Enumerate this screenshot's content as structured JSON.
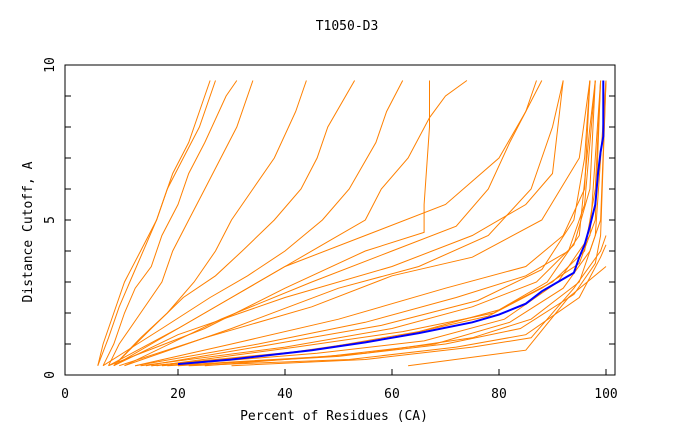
{
  "chart_data": {
    "type": "line",
    "title": "T1050-D3",
    "xlabel": "Percent of Residues (CA)",
    "ylabel": "Distance Cutoff, A",
    "xlim": [
      0,
      100
    ],
    "ylim": [
      0,
      10
    ],
    "xticks": [
      0,
      20,
      40,
      60,
      80,
      100
    ],
    "yticks": [
      0,
      5,
      10
    ],
    "grid": false,
    "colors": {
      "models": "#ff8000",
      "highlight": "#0000ff"
    },
    "series": [
      {
        "color": "#ff8000",
        "points": [
          [
            5,
            0.3
          ],
          [
            6,
            1
          ],
          [
            8,
            2
          ],
          [
            10,
            3
          ],
          [
            13,
            4
          ],
          [
            16,
            5
          ],
          [
            19,
            6.5
          ],
          [
            22,
            7.5
          ],
          [
            24,
            8.5
          ],
          [
            26,
            9.5
          ]
        ]
      },
      {
        "color": "#ff8000",
        "points": [
          [
            5,
            0.3
          ],
          [
            7,
            1.2
          ],
          [
            9,
            2.2
          ],
          [
            11,
            3
          ],
          [
            14,
            4.2
          ],
          [
            16,
            5
          ],
          [
            18,
            6
          ],
          [
            21,
            7
          ],
          [
            24,
            8
          ],
          [
            27,
            9.5
          ]
        ]
      },
      {
        "color": "#ff8000",
        "points": [
          [
            6,
            0.3
          ],
          [
            8,
            1
          ],
          [
            10,
            2
          ],
          [
            12,
            2.8
          ],
          [
            15,
            3.5
          ],
          [
            17,
            4.5
          ],
          [
            20,
            5.5
          ],
          [
            22,
            6.5
          ],
          [
            25,
            7.5
          ],
          [
            29,
            9
          ],
          [
            31,
            9.5
          ]
        ]
      },
      {
        "color": "#ff8000",
        "points": [
          [
            7,
            0.3
          ],
          [
            9,
            1
          ],
          [
            13,
            2
          ],
          [
            17,
            3
          ],
          [
            19,
            4
          ],
          [
            22,
            5
          ],
          [
            25,
            6
          ],
          [
            28,
            7
          ],
          [
            31,
            8
          ],
          [
            34,
            9.5
          ]
        ]
      },
      {
        "color": "#ff8000",
        "points": [
          [
            8,
            0.3
          ],
          [
            13,
            1.2
          ],
          [
            18,
            2
          ],
          [
            23,
            3
          ],
          [
            27,
            4
          ],
          [
            30,
            5
          ],
          [
            34,
            6
          ],
          [
            38,
            7
          ],
          [
            42,
            8.5
          ],
          [
            44,
            9.5
          ]
        ]
      },
      {
        "color": "#ff8000",
        "points": [
          [
            8,
            0.3
          ],
          [
            15,
            1.5
          ],
          [
            21,
            2.5
          ],
          [
            27,
            3.2
          ],
          [
            32,
            4
          ],
          [
            38,
            5
          ],
          [
            43,
            6
          ],
          [
            46,
            7
          ],
          [
            48,
            8
          ],
          [
            53,
            9.5
          ]
        ]
      },
      {
        "color": "#ff8000",
        "points": [
          [
            6,
            0.3
          ],
          [
            17,
            1.5
          ],
          [
            26,
            2.5
          ],
          [
            33,
            3.2
          ],
          [
            40,
            4
          ],
          [
            47,
            5
          ],
          [
            52,
            6
          ],
          [
            57,
            7.5
          ],
          [
            59,
            8.5
          ],
          [
            62,
            9.5
          ]
        ]
      },
      {
        "color": "#ff8000",
        "points": [
          [
            7,
            0.3
          ],
          [
            20,
            1.5
          ],
          [
            30,
            2.5
          ],
          [
            40,
            3.5
          ],
          [
            48,
            4.3
          ],
          [
            55,
            5
          ],
          [
            58,
            6
          ],
          [
            63,
            7
          ],
          [
            67,
            8.3
          ],
          [
            70,
            9
          ],
          [
            74,
            9.5
          ]
        ]
      },
      {
        "color": "#ff8000",
        "points": [
          [
            7,
            0.3
          ],
          [
            25,
            1.5
          ],
          [
            40,
            2.8
          ],
          [
            55,
            4
          ],
          [
            66,
            4.6
          ],
          [
            66,
            5.5
          ],
          [
            67,
            8
          ],
          [
            67,
            9.5
          ]
        ]
      },
      {
        "color": "#ff8000",
        "points": [
          [
            8,
            0.3
          ],
          [
            20,
            1.3
          ],
          [
            40,
            2.5
          ],
          [
            60,
            3.5
          ],
          [
            75,
            4.5
          ],
          [
            85,
            5.5
          ],
          [
            90,
            6.5
          ],
          [
            92,
            9.5
          ]
        ]
      },
      {
        "color": "#ff8000",
        "points": [
          [
            9,
            0.3
          ],
          [
            25,
            1.2
          ],
          [
            45,
            2.2
          ],
          [
            60,
            3.2
          ],
          [
            75,
            3.8
          ],
          [
            88,
            5
          ],
          [
            95,
            7
          ],
          [
            97,
            9.5
          ]
        ]
      },
      {
        "color": "#ff8000",
        "points": [
          [
            12,
            0.3
          ],
          [
            30,
            1
          ],
          [
            50,
            1.8
          ],
          [
            70,
            2.8
          ],
          [
            85,
            3.5
          ],
          [
            92,
            4.5
          ],
          [
            96,
            6
          ],
          [
            97,
            9.5
          ]
        ]
      },
      {
        "color": "#ff8000",
        "points": [
          [
            12,
            0.3
          ],
          [
            35,
            1
          ],
          [
            55,
            1.7
          ],
          [
            72,
            2.5
          ],
          [
            85,
            3.2
          ],
          [
            93,
            4
          ],
          [
            96,
            5.5
          ],
          [
            98,
            9.5
          ]
        ]
      },
      {
        "color": "#ff8000",
        "points": [
          [
            13,
            0.3
          ],
          [
            40,
            0.9
          ],
          [
            60,
            1.5
          ],
          [
            75,
            2.2
          ],
          [
            87,
            3
          ],
          [
            94,
            4.2
          ],
          [
            97,
            6
          ],
          [
            98,
            9.5
          ]
        ]
      },
      {
        "color": "#ff8000",
        "points": [
          [
            15,
            0.3
          ],
          [
            40,
            0.7
          ],
          [
            60,
            1.2
          ],
          [
            78,
            1.9
          ],
          [
            88,
            2.8
          ],
          [
            95,
            3.6
          ],
          [
            98,
            5
          ],
          [
            99,
            9.5
          ]
        ]
      },
      {
        "color": "#ff8000",
        "points": [
          [
            15,
            0.3
          ],
          [
            45,
            0.8
          ],
          [
            65,
            1.4
          ],
          [
            80,
            2.1
          ],
          [
            90,
            3
          ],
          [
            96,
            4
          ],
          [
            98,
            6
          ],
          [
            99,
            9.5
          ]
        ]
      },
      {
        "color": "#ff8000",
        "points": [
          [
            18,
            0.3
          ],
          [
            48,
            0.6
          ],
          [
            68,
            1
          ],
          [
            82,
            1.7
          ],
          [
            92,
            2.8
          ],
          [
            97,
            4
          ],
          [
            99,
            5
          ],
          [
            100,
            9.5
          ]
        ]
      },
      {
        "color": "#ff8000",
        "points": [
          [
            20,
            0.3
          ],
          [
            50,
            0.6
          ],
          [
            70,
            1
          ],
          [
            84,
            1.5
          ],
          [
            94,
            2.6
          ],
          [
            98,
            3.6
          ],
          [
            99,
            4.5
          ],
          [
            100,
            9.5
          ]
        ]
      },
      {
        "color": "#ff8000",
        "points": [
          [
            22,
            0.3
          ],
          [
            52,
            0.5
          ],
          [
            72,
            0.9
          ],
          [
            85,
            1.3
          ],
          [
            95,
            2.5
          ],
          [
            99,
            3.8
          ],
          [
            100,
            4.2
          ]
        ]
      },
      {
        "color": "#ff8000",
        "points": [
          [
            63,
            0.3
          ],
          [
            85,
            0.8
          ],
          [
            93,
            2.5
          ],
          [
            100,
            3.5
          ]
        ]
      },
      {
        "color": "#ff8000",
        "points": [
          [
            25,
            0.3
          ],
          [
            55,
            0.7
          ],
          [
            75,
            1.2
          ],
          [
            86,
            1.8
          ],
          [
            95,
            3
          ],
          [
            98,
            4.5
          ],
          [
            100,
            9.5
          ]
        ]
      },
      {
        "color": "#ff8000",
        "points": [
          [
            14,
            0.3
          ],
          [
            38,
            1
          ],
          [
            58,
            1.6
          ],
          [
            76,
            2.4
          ],
          [
            88,
            3.4
          ],
          [
            94,
            5
          ],
          [
            96,
            7
          ],
          [
            97,
            9.5
          ]
        ]
      },
      {
        "color": "#ff8000",
        "points": [
          [
            10,
            0.3
          ],
          [
            30,
            1.5
          ],
          [
            50,
            2.8
          ],
          [
            65,
            3.5
          ],
          [
            78,
            4.5
          ],
          [
            86,
            6
          ],
          [
            88,
            7
          ],
          [
            90,
            8
          ],
          [
            92,
            9.5
          ]
        ]
      },
      {
        "color": "#ff8000",
        "points": [
          [
            8,
            0.3
          ],
          [
            25,
            2
          ],
          [
            40,
            3.5
          ],
          [
            55,
            4.5
          ],
          [
            70,
            5.5
          ],
          [
            80,
            7
          ],
          [
            85,
            8.5
          ],
          [
            87,
            9.5
          ]
        ]
      },
      {
        "color": "#ff8000",
        "points": [
          [
            10,
            0.3
          ],
          [
            28,
            1.8
          ],
          [
            45,
            3
          ],
          [
            60,
            4
          ],
          [
            72,
            4.8
          ],
          [
            78,
            6
          ],
          [
            82,
            7.5
          ],
          [
            85,
            8.5
          ],
          [
            88,
            9.5
          ]
        ]
      },
      {
        "color": "#ff8000",
        "points": [
          [
            16,
            0.3
          ],
          [
            42,
            0.9
          ],
          [
            62,
            1.4
          ],
          [
            79,
            2
          ],
          [
            89,
            3
          ],
          [
            95,
            4.5
          ],
          [
            97,
            8
          ],
          [
            98,
            9.5
          ]
        ]
      },
      {
        "color": "#ff8000",
        "points": [
          [
            17,
            0.3
          ],
          [
            46,
            0.7
          ],
          [
            66,
            1.1
          ],
          [
            81,
            1.8
          ],
          [
            91,
            3
          ],
          [
            97,
            4.5
          ],
          [
            99,
            9.5
          ]
        ]
      },
      {
        "color": "#ff8000",
        "points": [
          [
            30,
            0.3
          ],
          [
            55,
            0.5
          ],
          [
            75,
            0.9
          ],
          [
            86,
            1.2
          ],
          [
            94,
            2.8
          ],
          [
            99,
            4
          ],
          [
            100,
            4.5
          ]
        ]
      },
      {
        "color": "#0000ff",
        "highlight": true,
        "points": [
          [
            20,
            0.35
          ],
          [
            30,
            0.5
          ],
          [
            45,
            0.8
          ],
          [
            55,
            1.05
          ],
          [
            65,
            1.35
          ],
          [
            75,
            1.7
          ],
          [
            80,
            1.95
          ],
          [
            85,
            2.3
          ],
          [
            88,
            2.7
          ],
          [
            91,
            3.0
          ],
          [
            94,
            3.3
          ],
          [
            95,
            3.8
          ],
          [
            96,
            4.2
          ],
          [
            97,
            4.8
          ],
          [
            98,
            5.5
          ],
          [
            98.5,
            6.5
          ],
          [
            99,
            7.2
          ],
          [
            99.5,
            7.7
          ],
          [
            99.5,
            9.5
          ]
        ]
      }
    ]
  }
}
